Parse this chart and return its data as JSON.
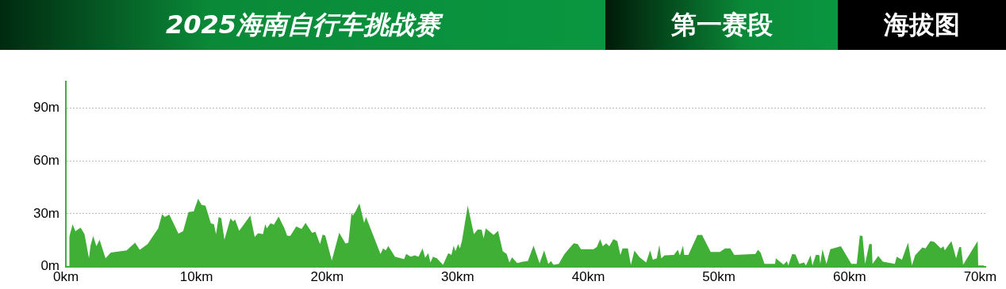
{
  "chart_data": {
    "type": "area",
    "title": "2025海南自行车挑战赛",
    "subtitle": "第一赛段",
    "annotations": [
      "海拔图"
    ],
    "x": [
      0.26,
      0.52,
      0.73,
      1.13,
      1.43,
      1.77,
      1.89,
      2.09,
      2.34,
      2.58,
      3.04,
      3.44,
      4.65,
      5.3,
      5.66,
      6.26,
      7.07,
      7.37,
      7.57,
      7.92,
      8.62,
      8.98,
      9.39,
      9.79,
      10.13,
      10.39,
      10.69,
      11.1,
      11.34,
      11.5,
      11.7,
      11.9,
      12.14,
      12.61,
      12.81,
      12.95,
      13.27,
      14.12,
      14.46,
      14.72,
      15.09,
      15.27,
      15.39,
      15.67,
      15.93,
      16.29,
      16.74,
      16.94,
      17.18,
      17.64,
      18.05,
      18.35,
      18.85,
      19.11,
      19.46,
      19.66,
      19.86,
      20.36,
      20.93,
      21.41,
      21.63,
      21.87,
      21.97,
      22.18,
      22.48,
      22.84,
      22.98,
      23.58,
      24.09,
      24.29,
      24.49,
      24.69,
      25.2,
      25.9,
      26.06,
      26.41,
      26.71,
      27.0,
      27.31,
      27.51,
      27.75,
      27.91,
      28.11,
      28.41,
      28.88,
      29.28,
      29.52,
      29.69,
      29.83,
      30.03,
      30.17,
      30.33,
      30.77,
      31.24,
      31.54,
      31.84,
      31.98,
      32.15,
      32.75,
      33.09,
      33.45,
      33.75,
      33.96,
      34.16,
      34.56,
      34.97,
      35.37,
      35.81,
      36.27,
      36.62,
      36.94,
      37.14,
      37.34,
      37.74,
      38.18,
      38.63,
      38.89,
      39.19,
      39.44,
      40.4,
      40.65,
      40.91,
      41.11,
      41.37,
      41.61,
      41.92,
      42.22,
      42.46,
      42.62,
      43.03,
      43.26,
      43.53,
      43.93,
      44.43,
      44.73,
      44.94,
      45.24,
      45.44,
      45.58,
      45.84,
      46.55,
      46.85,
      47.01,
      47.25,
      47.35,
      47.66,
      48.36,
      48.71,
      49.37,
      50.07,
      50.47,
      50.87,
      51.18,
      52.79,
      52.99,
      53.19,
      53.49,
      54.3,
      54.36,
      54.95,
      55.21,
      55.31,
      55.61,
      55.87,
      56.15,
      56.52,
      56.66,
      56.82,
      57.02,
      57.16,
      57.42,
      57.68,
      57.76,
      57.93,
      58.23,
      58.53,
      59.34,
      60.14,
      60.55,
      60.79,
      60.99,
      61.19,
      61.51,
      61.7,
      61.76,
      62.2,
      62.56,
      63.47,
      63.61,
      64.01,
      64.48,
      64.78,
      65.02,
      65.58,
      65.82,
      66.19,
      66.49,
      66.99,
      67.19,
      67.29,
      67.8,
      68.16,
      68.4,
      68.54,
      68.7,
      69.81,
      69.85,
      70.31
    ],
    "values": [
      16.8,
      24.0,
      20.0,
      22.1,
      18.4,
      4.7,
      11.9,
      17.3,
      11.5,
      15.2,
      4.7,
      7.9,
      9.2,
      13.5,
      9.5,
      12.7,
      21.6,
      29.7,
      28.1,
      29.5,
      18.7,
      20.0,
      31.0,
      31.3,
      38.5,
      35.0,
      34.5,
      24.5,
      24.0,
      18.4,
      28.1,
      27.3,
      15.2,
      27.3,
      25.6,
      26.8,
      20.3,
      28.9,
      16.8,
      18.9,
      18.4,
      24.0,
      21.6,
      24.5,
      23.7,
      28.4,
      21.6,
      17.6,
      17.3,
      22.7,
      21.3,
      24.8,
      19.2,
      19.7,
      12.7,
      18.1,
      17.6,
      3.4,
      19.2,
      13.1,
      13.5,
      30.5,
      28.9,
      31.3,
      35.8,
      24.8,
      28.1,
      16.8,
      7.1,
      10.3,
      9.2,
      11.6,
      5.5,
      4.2,
      7.1,
      5.5,
      6.3,
      5.5,
      10.3,
      5.0,
      7.6,
      2.3,
      5.5,
      4.7,
      1.0,
      7.6,
      6.6,
      11.9,
      8.7,
      12.7,
      10.3,
      14.7,
      34.5,
      18.4,
      21.1,
      20.8,
      16.0,
      21.6,
      17.9,
      20.3,
      8.7,
      7.1,
      2.3,
      5.2,
      1.9,
      2.7,
      3.1,
      11.9,
      1.8,
      9.2,
      1.5,
      3.1,
      1.0,
      1.5,
      7.1,
      11.1,
      13.2,
      12.7,
      9.8,
      9.8,
      11.1,
      15.6,
      11.5,
      13.2,
      11.5,
      15.6,
      14.4,
      6.6,
      10.3,
      10.3,
      1.0,
      9.0,
      5.2,
      2.3,
      9.2,
      3.9,
      4.7,
      12.3,
      4.7,
      6.3,
      6.6,
      9.5,
      6.3,
      11.9,
      6.6,
      6.6,
      17.9,
      17.9,
      8.2,
      8.2,
      10.3,
      10.3,
      6.6,
      7.1,
      9.5,
      7.9,
      1.5,
      1.5,
      4.7,
      1.1,
      3.1,
      0.6,
      7.1,
      6.8,
      1.5,
      2.3,
      0.6,
      3.1,
      6.3,
      0.6,
      6.6,
      6.6,
      1.5,
      9.8,
      1.5,
      9.8,
      11.5,
      1.5,
      1.5,
      17.6,
      17.3,
      1.5,
      12.7,
      12.7,
      1.5,
      6.0,
      2.7,
      1.5,
      5.5,
      3.9,
      13.5,
      0.6,
      6.3,
      10.8,
      10.3,
      14.4,
      14.0,
      10.3,
      11.5,
      9.2,
      14.4,
      4.7,
      11.1,
      11.1,
      1.1,
      14.4,
      0.6,
      0.6
    ],
    "color": "#3faf35",
    "xlim": [
      0,
      70.4
    ],
    "ylim": [
      0,
      105
    ],
    "xticks": [
      {
        "value": 0,
        "label": "0km"
      },
      {
        "value": 10,
        "label": "10km"
      },
      {
        "value": 20,
        "label": "20km"
      },
      {
        "value": 30,
        "label": "30km"
      },
      {
        "value": 40,
        "label": "40km"
      },
      {
        "value": 50,
        "label": "50km"
      },
      {
        "value": 60,
        "label": "60km"
      },
      {
        "value": 70,
        "label": "70km"
      }
    ],
    "yticks": [
      {
        "value": 0,
        "label": "0m"
      },
      {
        "value": 30,
        "label": "30m"
      },
      {
        "value": 60,
        "label": "60m"
      },
      {
        "value": 90,
        "label": "90m"
      }
    ],
    "grid": "y"
  }
}
